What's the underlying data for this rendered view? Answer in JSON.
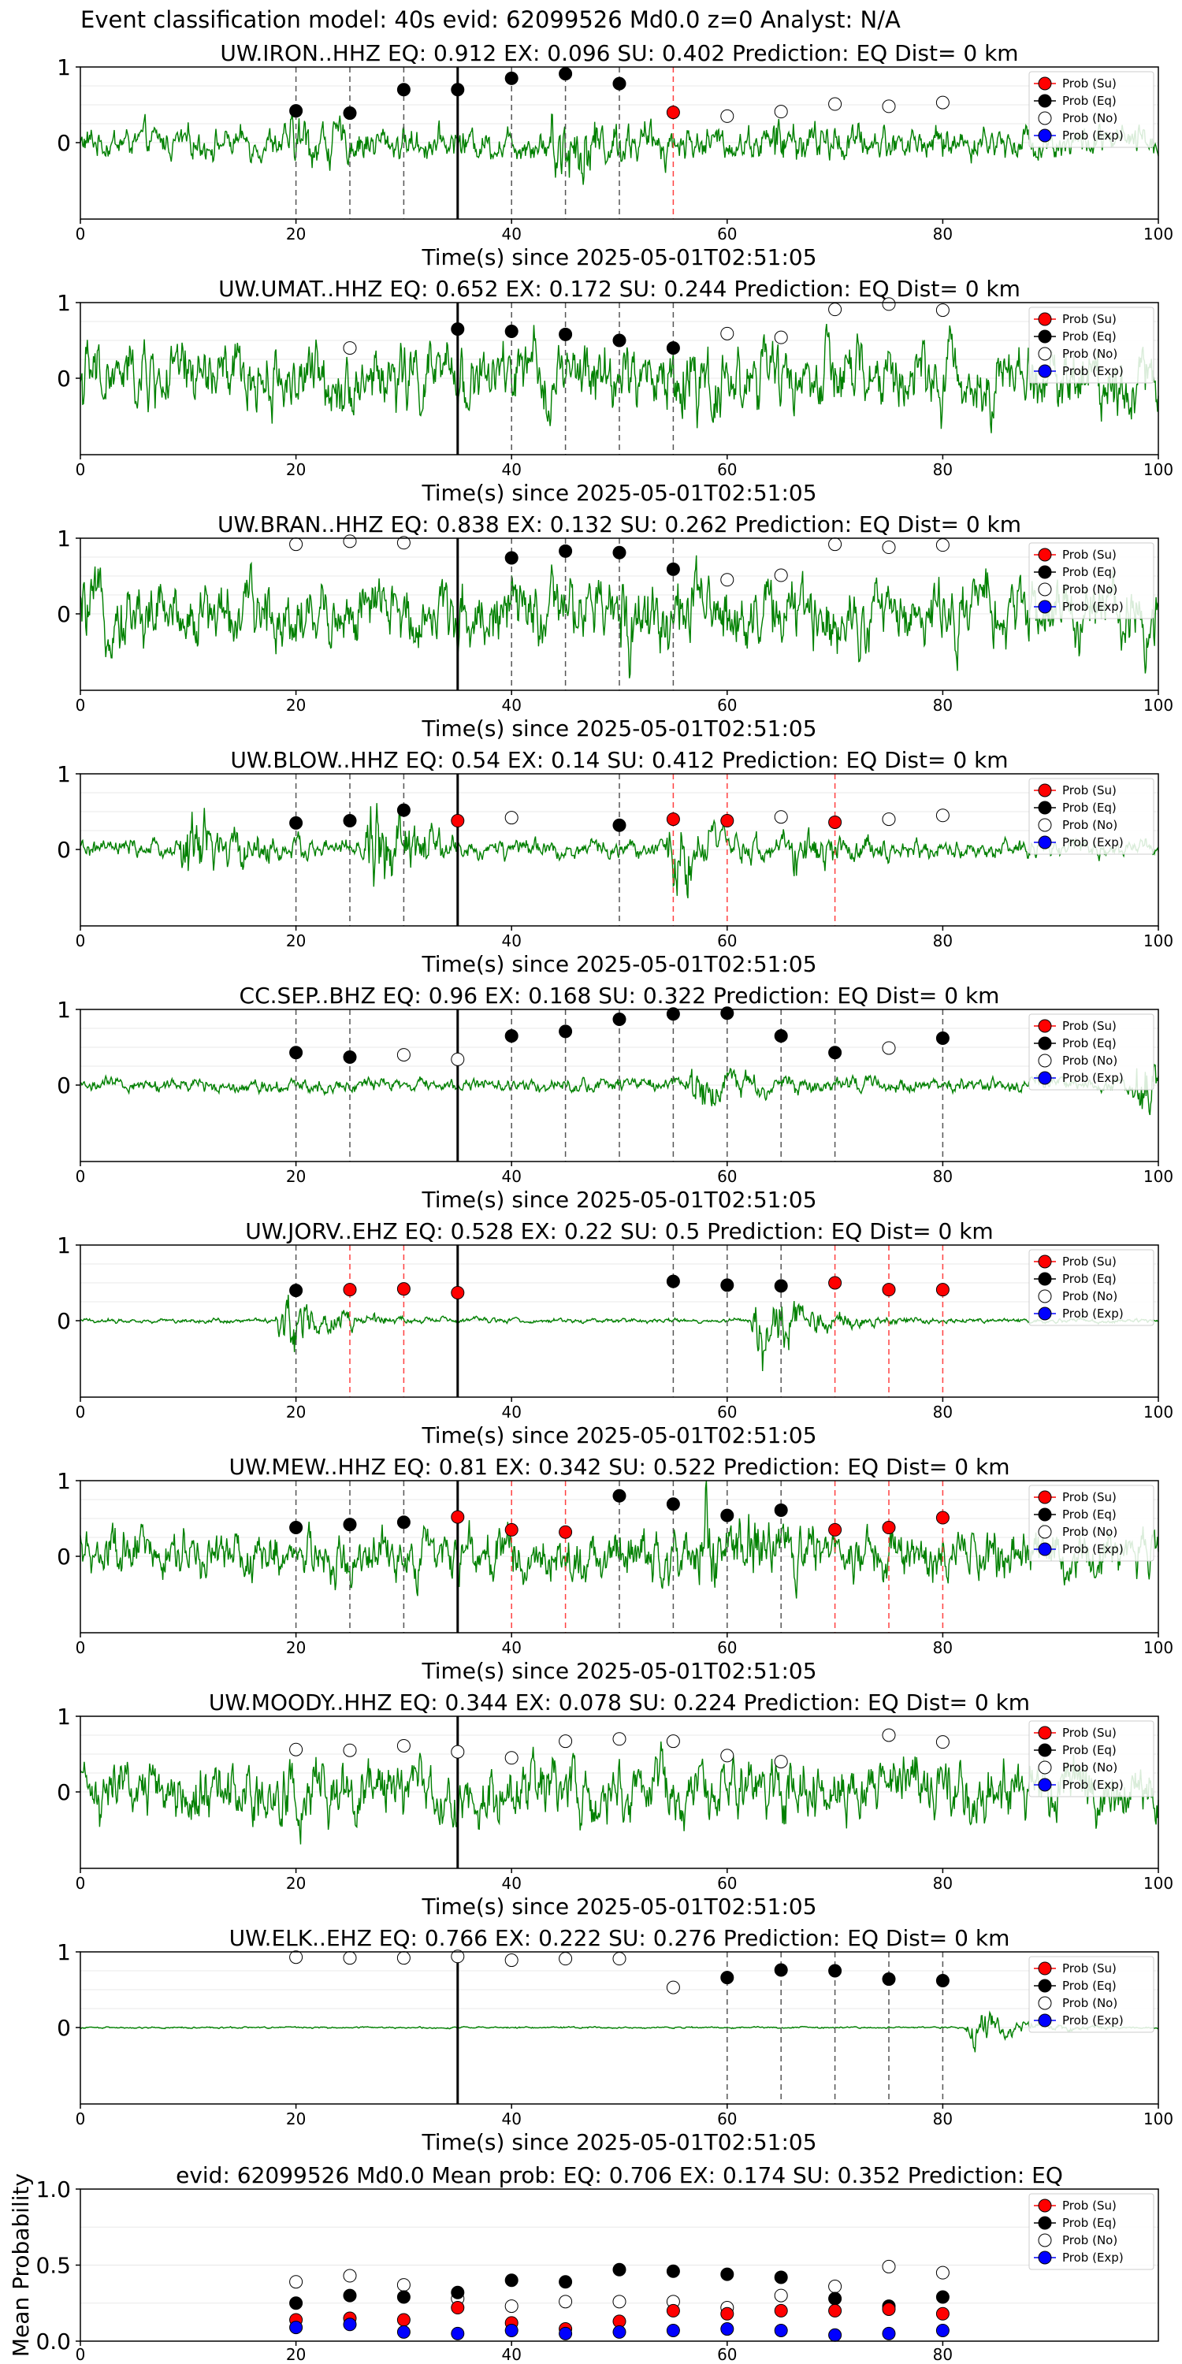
{
  "figure": {
    "title": "Event classification model: 40s evid: 62099526 Md0.0 z=0 Analyst: N/A",
    "xlabel": "Time(s) since 2025-05-01T02:51:05",
    "legend": [
      "Prob (Su)",
      "Prob (Eq)",
      "Prob (No)",
      "Prob (Exp)"
    ],
    "legend_placement": "top-right",
    "colors": {
      "trace": "#008000",
      "su": "#ff0000",
      "eq": "#000000",
      "no": "#ffffff",
      "exp": "#0000ff"
    }
  },
  "chart_data": [
    {
      "type": "line",
      "title": "UW.IRON..HHZ   EQ: 0.912  EX: 0.096  SU: 0.402   Prediction: EQ    Dist= 0 km",
      "xlim": [
        0,
        100
      ],
      "xticks": [
        "0",
        "20",
        "40",
        "60",
        "80",
        "100"
      ],
      "yticks": [
        "0",
        "1"
      ],
      "ylim": [
        -1,
        1
      ],
      "trace_amp": 0.28,
      "bursts": [
        [
          20,
          0.25
        ],
        [
          44,
          0.65
        ],
        [
          64,
          0.2
        ]
      ],
      "window_start_line": 35,
      "window_starts": [
        20,
        25,
        30,
        35,
        40,
        45,
        50,
        55,
        60,
        65,
        70,
        75,
        80
      ],
      "eq": [
        0.42,
        0.39,
        0.7,
        0.7,
        0.85,
        0.91,
        0.78,
        null,
        null,
        null,
        null,
        null,
        null
      ],
      "su": [
        null,
        null,
        null,
        null,
        null,
        null,
        null,
        0.4,
        null,
        null,
        null,
        null,
        null
      ],
      "no": [
        null,
        null,
        null,
        null,
        null,
        null,
        null,
        null,
        0.35,
        0.41,
        0.51,
        0.48,
        0.53
      ]
    },
    {
      "type": "line",
      "title": "UW.UMAT..HHZ   EQ: 0.652  EX: 0.172  SU: 0.244   Prediction: EQ    Dist= 0 km",
      "xlim": [
        0,
        100
      ],
      "xticks": [
        "0",
        "20",
        "40",
        "60",
        "80",
        "100"
      ],
      "yticks": [
        "0",
        "1"
      ],
      "ylim": [
        -1,
        1
      ],
      "trace_amp": 0.6,
      "bursts": [
        [
          55,
          0.3
        ]
      ],
      "window_start_line": 35,
      "window_starts": [
        20,
        25,
        30,
        35,
        40,
        45,
        50,
        55,
        60,
        65,
        70,
        75,
        80
      ],
      "eq": [
        null,
        null,
        null,
        0.65,
        0.62,
        0.58,
        0.5,
        0.4,
        null,
        null,
        null,
        null,
        null
      ],
      "su": [],
      "no": [
        null,
        0.4,
        null,
        null,
        null,
        null,
        null,
        null,
        0.59,
        0.54,
        0.91,
        0.98,
        0.9
      ]
    },
    {
      "type": "line",
      "title": "UW.BRAN..HHZ   EQ: 0.838  EX: 0.132  SU: 0.262   Prediction: EQ    Dist= 0 km",
      "xlim": [
        0,
        100
      ],
      "xticks": [
        "0",
        "20",
        "40",
        "60",
        "80",
        "100"
      ],
      "yticks": [
        "0",
        "1"
      ],
      "ylim": [
        -1,
        1
      ],
      "trace_amp": 0.6,
      "bursts": [
        [
          50,
          0.3
        ]
      ],
      "window_start_line": 35,
      "window_starts": [
        20,
        25,
        30,
        35,
        40,
        45,
        50,
        55,
        60,
        65,
        70,
        75,
        80
      ],
      "eq": [
        null,
        null,
        null,
        null,
        0.74,
        0.83,
        0.81,
        0.59,
        null,
        null,
        null,
        null,
        null
      ],
      "su": [],
      "no": [
        0.92,
        0.96,
        0.94,
        null,
        null,
        null,
        null,
        null,
        0.45,
        0.51,
        0.92,
        0.88,
        0.91
      ]
    },
    {
      "type": "line",
      "title": "UW.BLOW..HHZ   EQ: 0.54  EX: 0.14  SU: 0.412   Prediction: EQ    Dist= 0 km",
      "xlim": [
        0,
        100
      ],
      "xticks": [
        "0",
        "20",
        "40",
        "60",
        "80",
        "100"
      ],
      "yticks": [
        "0",
        "1"
      ],
      "ylim": [
        -1,
        1
      ],
      "trace_amp": 0.15,
      "bursts": [
        [
          10,
          0.75
        ],
        [
          27,
          0.8
        ],
        [
          55,
          0.7
        ],
        [
          66,
          0.3
        ]
      ],
      "window_start_line": 35,
      "window_starts": [
        20,
        25,
        30,
        35,
        40,
        45,
        50,
        55,
        60,
        65,
        70,
        75,
        80
      ],
      "eq": [
        0.35,
        0.38,
        0.52,
        null,
        null,
        null,
        0.32,
        null,
        null,
        null,
        null,
        null,
        null
      ],
      "su": [
        null,
        null,
        null,
        0.38,
        null,
        null,
        null,
        0.4,
        0.38,
        null,
        0.36,
        null,
        null
      ],
      "no": [
        null,
        null,
        null,
        null,
        0.42,
        null,
        null,
        null,
        null,
        0.43,
        null,
        0.4,
        0.45
      ]
    },
    {
      "type": "line",
      "title": "CC.SEP..BHZ   EQ: 0.96  EX: 0.168  SU: 0.322   Prediction: EQ    Dist= 0 km",
      "xlim": [
        0,
        100
      ],
      "xticks": [
        "0",
        "20",
        "40",
        "60",
        "80",
        "100"
      ],
      "yticks": [
        "0",
        "1"
      ],
      "ylim": [
        -1,
        1
      ],
      "trace_amp": 0.12,
      "bursts": [
        [
          57,
          0.4
        ],
        [
          98,
          0.5
        ]
      ],
      "window_start_line": 35,
      "window_starts": [
        20,
        25,
        30,
        35,
        40,
        45,
        50,
        55,
        60,
        65,
        70,
        75,
        80
      ],
      "eq": [
        0.43,
        0.37,
        null,
        null,
        0.65,
        0.71,
        0.87,
        0.94,
        0.95,
        0.65,
        0.43,
        null,
        0.62
      ],
      "su": [],
      "no": [
        null,
        null,
        0.4,
        0.34,
        null,
        null,
        null,
        null,
        null,
        null,
        null,
        0.49,
        null
      ]
    },
    {
      "type": "line",
      "title": "UW.JORV..EHZ   EQ: 0.528  EX: 0.22  SU: 0.5   Prediction: EQ    Dist= 0 km",
      "xlim": [
        0,
        100
      ],
      "xticks": [
        "0",
        "20",
        "40",
        "60",
        "80",
        "100"
      ],
      "yticks": [
        "0",
        "1"
      ],
      "ylim": [
        -1,
        1
      ],
      "trace_amp": 0.04,
      "bursts": [
        [
          19,
          0.55
        ],
        [
          63,
          0.8
        ]
      ],
      "window_start_line": 35,
      "window_starts": [
        20,
        25,
        30,
        35,
        40,
        45,
        50,
        55,
        60,
        65,
        70,
        75,
        80
      ],
      "eq": [
        0.4,
        null,
        null,
        null,
        null,
        null,
        null,
        0.52,
        0.47,
        0.46,
        null,
        null,
        null
      ],
      "su": [
        null,
        0.41,
        0.42,
        0.37,
        null,
        null,
        null,
        null,
        null,
        null,
        0.5,
        0.41,
        0.41
      ],
      "no": []
    },
    {
      "type": "line",
      "title": "UW.MEW..HHZ   EQ: 0.81  EX: 0.342  SU: 0.522   Prediction: EQ    Dist= 0 km",
      "xlim": [
        0,
        100
      ],
      "xticks": [
        "0",
        "20",
        "40",
        "60",
        "80",
        "100"
      ],
      "yticks": [
        "0",
        "1"
      ],
      "ylim": [
        -1,
        1
      ],
      "trace_amp": 0.45,
      "bursts": [
        [
          58,
          0.5
        ]
      ],
      "window_start_line": 35,
      "window_starts": [
        20,
        25,
        30,
        35,
        40,
        45,
        50,
        55,
        60,
        65,
        70,
        75,
        80
      ],
      "eq": [
        0.38,
        0.42,
        0.45,
        null,
        null,
        null,
        0.8,
        0.69,
        0.54,
        0.61,
        null,
        null,
        null
      ],
      "su": [
        null,
        null,
        null,
        0.52,
        0.35,
        0.32,
        null,
        null,
        null,
        null,
        0.35,
        0.38,
        0.51
      ],
      "no": []
    },
    {
      "type": "line",
      "title": "UW.MOODY..HHZ   EQ: 0.344  EX: 0.078  SU: 0.224   Prediction: EQ    Dist= 0 km",
      "xlim": [
        0,
        100
      ],
      "xticks": [
        "0",
        "20",
        "40",
        "60",
        "80",
        "100"
      ],
      "yticks": [
        "0",
        "1"
      ],
      "ylim": [
        -1,
        1
      ],
      "trace_amp": 0.55,
      "bursts": [],
      "window_start_line": 35,
      "window_starts": [
        20,
        25,
        30,
        35,
        40,
        45,
        50,
        55,
        60,
        65,
        70,
        75,
        80
      ],
      "eq": [],
      "su": [],
      "no": [
        0.56,
        0.55,
        0.61,
        0.53,
        0.45,
        0.67,
        0.7,
        0.67,
        0.48,
        0.4,
        null,
        0.75,
        0.66
      ]
    },
    {
      "type": "line",
      "title": "UW.ELK..EHZ   EQ: 0.766  EX: 0.222  SU: 0.276   Prediction: EQ    Dist= 0 km",
      "xlim": [
        0,
        100
      ],
      "xticks": [
        "0",
        "20",
        "40",
        "60",
        "80",
        "100"
      ],
      "yticks": [
        "0",
        "1"
      ],
      "ylim": [
        -1,
        1
      ],
      "trace_amp": 0.015,
      "bursts": [
        [
          83,
          0.35
        ]
      ],
      "window_start_line": 35,
      "window_starts": [
        20,
        25,
        30,
        35,
        40,
        45,
        50,
        55,
        60,
        65,
        70,
        75,
        80
      ],
      "eq": [
        null,
        null,
        null,
        null,
        null,
        null,
        null,
        null,
        0.66,
        0.76,
        0.75,
        0.64,
        0.62
      ],
      "su": [],
      "no": [
        0.93,
        0.92,
        0.92,
        0.94,
        0.89,
        0.91,
        0.91,
        0.53,
        null,
        null,
        null,
        null,
        null
      ]
    },
    {
      "type": "scatter",
      "title": "evid: 62099526  Md0.0    Mean prob:    EQ: 0.706  EX: 0.174  SU: 0.352   Prediction: EQ",
      "ylabel": "Mean Probability",
      "xlim": [
        0,
        100
      ],
      "xticks": [
        "0",
        "20",
        "40",
        "60",
        "80"
      ],
      "yticks": [
        "0.0",
        "0.5",
        "1.0"
      ],
      "ylim": [
        0,
        1
      ],
      "x": [
        20,
        25,
        30,
        35,
        40,
        45,
        50,
        55,
        60,
        65,
        70,
        75,
        80
      ],
      "eq": [
        0.25,
        0.3,
        0.29,
        0.32,
        0.4,
        0.39,
        0.47,
        0.46,
        0.44,
        0.42,
        0.28,
        0.23,
        0.29
      ],
      "su": [
        0.14,
        0.15,
        0.14,
        0.22,
        0.12,
        0.08,
        0.13,
        0.2,
        0.18,
        0.2,
        0.2,
        0.21,
        0.18
      ],
      "no": [
        0.39,
        0.43,
        0.37,
        0.28,
        0.23,
        0.26,
        0.26,
        0.26,
        0.22,
        0.3,
        0.36,
        0.49,
        0.45
      ],
      "exp": [
        0.09,
        0.11,
        0.06,
        0.05,
        0.07,
        0.05,
        0.06,
        0.07,
        0.08,
        0.07,
        0.04,
        0.05,
        0.07
      ]
    }
  ]
}
